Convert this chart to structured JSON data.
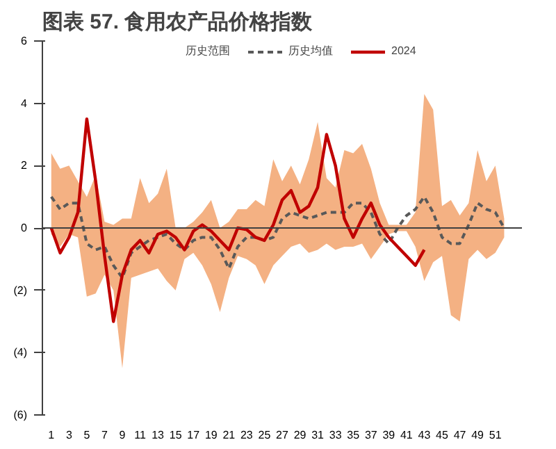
{
  "chart_data": {
    "type": "line",
    "title": "图表 57. 食用农产品价格指数",
    "annotations": [
      "历史范围"
    ],
    "x": [
      1,
      2,
      3,
      4,
      5,
      6,
      7,
      8,
      9,
      10,
      11,
      12,
      13,
      14,
      15,
      16,
      17,
      18,
      19,
      20,
      21,
      22,
      23,
      24,
      25,
      26,
      27,
      28,
      29,
      30,
      31,
      32,
      33,
      34,
      35,
      36,
      37,
      38,
      39,
      40,
      41,
      42,
      43,
      44,
      45,
      46,
      47,
      48,
      49,
      50,
      51,
      52
    ],
    "series": [
      {
        "name": "历史均值",
        "line_style": "dashed",
        "color": "#595959",
        "values": [
          1.0,
          0.6,
          0.8,
          0.8,
          -0.5,
          -0.7,
          -0.6,
          -1.2,
          -1.6,
          -0.8,
          -0.6,
          -0.4,
          -0.3,
          -0.2,
          -0.5,
          -0.7,
          -0.4,
          -0.3,
          -0.3,
          -0.7,
          -1.3,
          -0.6,
          -0.3,
          -0.3,
          -0.4,
          -0.3,
          0.3,
          0.5,
          0.4,
          0.3,
          0.4,
          0.5,
          0.5,
          0.5,
          0.8,
          0.8,
          0.5,
          -0.2,
          -0.5,
          0.0,
          0.4,
          0.6,
          1.0,
          0.5,
          -0.3,
          -0.5,
          -0.5,
          0.1,
          0.8,
          0.6,
          0.5,
          0.0
        ],
        "lower": [
          -0.2,
          -0.6,
          -0.2,
          -0.3,
          -2.2,
          -2.1,
          -1.5,
          -2.0,
          -4.5,
          -1.6,
          -1.5,
          -1.4,
          -1.3,
          -1.7,
          -2.0,
          -1.0,
          -0.8,
          -1.2,
          -1.8,
          -2.7,
          -1.6,
          -0.9,
          -1.0,
          -1.2,
          -1.8,
          -1.2,
          -0.9,
          -0.6,
          -0.5,
          -0.8,
          -0.7,
          -0.5,
          -0.7,
          -0.6,
          -0.6,
          -0.5,
          -1.0,
          -0.6,
          -0.2,
          -0.1,
          -0.1,
          -0.6,
          -1.7,
          -1.1,
          -0.9,
          -2.8,
          -3.0,
          -1.0,
          -0.7,
          -1.0,
          -0.8,
          -0.3
        ],
        "upper": [
          2.4,
          1.9,
          2.0,
          1.5,
          1.0,
          1.7,
          0.2,
          0.1,
          0.3,
          0.3,
          1.6,
          0.8,
          1.1,
          1.9,
          0.0,
          0.0,
          0.2,
          0.5,
          0.9,
          0.0,
          0.2,
          0.6,
          0.6,
          0.9,
          0.7,
          2.2,
          1.5,
          2.0,
          1.4,
          2.2,
          3.4,
          1.6,
          1.3,
          2.5,
          2.4,
          2.7,
          1.9,
          0.8,
          0.1,
          0.1,
          0.1,
          0.5,
          4.3,
          3.8,
          0.7,
          0.9,
          0.4,
          0.8,
          2.5,
          1.5,
          2.0,
          0.3
        ]
      },
      {
        "name": "2024",
        "line_style": "solid",
        "color": "#c00000",
        "values": [
          0.0,
          -0.8,
          -0.3,
          0.5,
          3.5,
          1.5,
          -0.9,
          -3.0,
          -1.5,
          -0.7,
          -0.4,
          -0.8,
          -0.2,
          -0.1,
          -0.3,
          -0.7,
          -0.1,
          0.1,
          -0.1,
          -0.4,
          -0.7,
          0.0,
          -0.05,
          -0.3,
          -0.4,
          0.1,
          0.9,
          1.2,
          0.5,
          0.7,
          1.3,
          3.0,
          2.0,
          0.3,
          -0.3,
          0.3,
          0.8,
          0.1,
          -0.3,
          -0.6,
          -0.9,
          -1.2,
          -0.7,
          null,
          null,
          null,
          null,
          null,
          null,
          null,
          null,
          null
        ]
      }
    ],
    "ref_lines": [
      {
        "axis": "y",
        "value": 0,
        "color": "#404040"
      }
    ],
    "xlim": [
      0,
      54
    ],
    "xticks": [
      1,
      3,
      5,
      7,
      9,
      11,
      13,
      15,
      17,
      19,
      21,
      23,
      25,
      27,
      29,
      31,
      33,
      35,
      37,
      39,
      41,
      43,
      45,
      47,
      49,
      51
    ],
    "ylim": [
      -6,
      6
    ],
    "yticks": [
      {
        "value": -6,
        "label": "(6)"
      },
      {
        "value": -4,
        "label": "(4)"
      },
      {
        "value": -2,
        "label": "(2)"
      },
      0,
      2,
      4,
      6
    ],
    "legend": "top",
    "marker": "none"
  }
}
